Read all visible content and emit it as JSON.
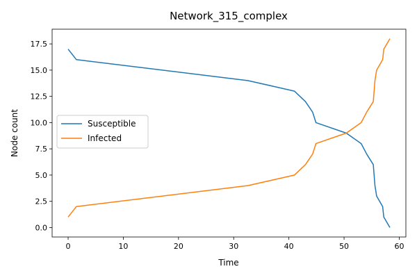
{
  "chart_data": {
    "type": "line",
    "title": "Network_315_complex",
    "xlabel": "Time",
    "ylabel": "Node count",
    "xlim": [
      -2.9,
      61.2
    ],
    "ylim": [
      -0.9,
      18.9
    ],
    "xticks": [
      0,
      10,
      20,
      30,
      40,
      50,
      60
    ],
    "yticks": [
      0.0,
      2.5,
      5.0,
      7.5,
      10.0,
      12.5,
      15.0,
      17.5
    ],
    "xtick_labels": [
      "0",
      "10",
      "20",
      "30",
      "40",
      "50",
      "60"
    ],
    "ytick_labels": [
      "0.0",
      "2.5",
      "5.0",
      "7.5",
      "10.0",
      "12.5",
      "15.0",
      "17.5"
    ],
    "grid": false,
    "legend_position": "center-left",
    "series": [
      {
        "name": "Susceptible",
        "color": "#1f77b4",
        "x": [
          0,
          1.5,
          32.6,
          41.0,
          43.0,
          44.3,
          44.9,
          50.4,
          53.1,
          54.1,
          55.3,
          55.6,
          55.9,
          57.0,
          57.2,
          58.3
        ],
        "y": [
          17,
          16,
          14,
          13,
          12,
          11,
          10,
          9,
          8,
          7,
          6,
          4,
          3,
          2,
          1,
          0
        ]
      },
      {
        "name": "Infected",
        "color": "#ff7f0e",
        "x": [
          0,
          1.5,
          32.6,
          41.0,
          43.0,
          44.3,
          44.9,
          50.4,
          53.1,
          54.1,
          55.3,
          55.6,
          55.9,
          57.0,
          57.2,
          58.3
        ],
        "y": [
          1,
          2,
          4,
          5,
          6,
          7,
          8,
          9,
          10,
          11,
          12,
          14,
          15,
          16,
          17,
          18
        ]
      }
    ]
  }
}
